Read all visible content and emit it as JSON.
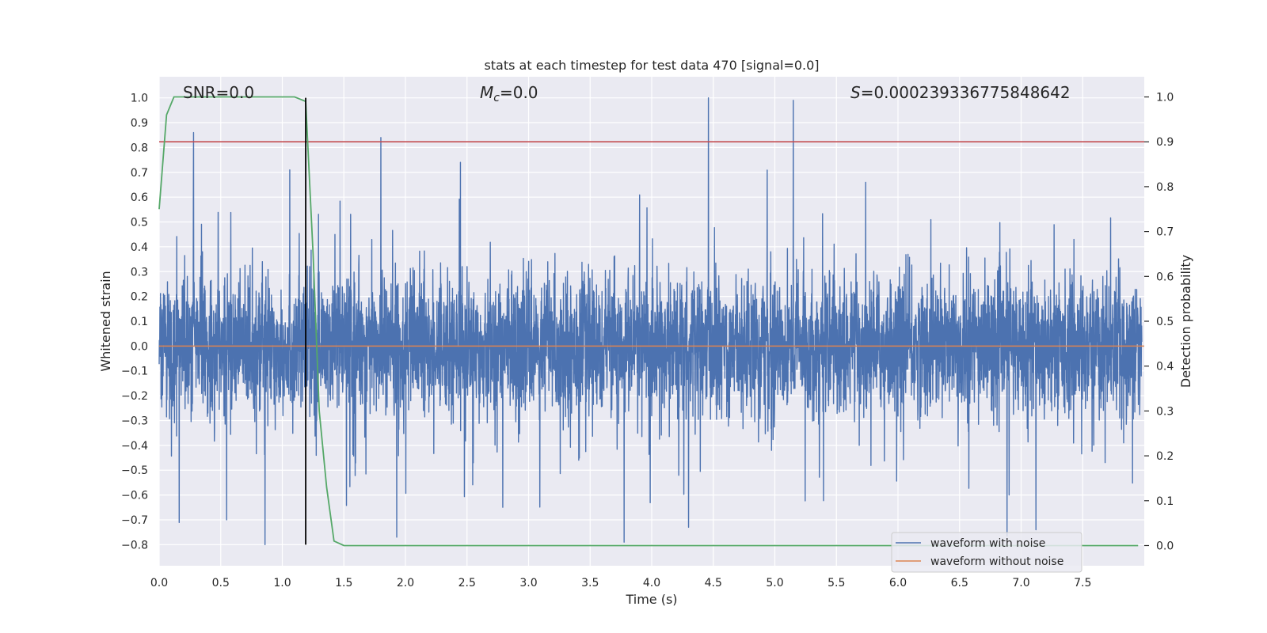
{
  "chart_data": {
    "type": "line",
    "title": "stats at each timestep for test data 470 [signal=0.0]",
    "xlabel": "Time (s)",
    "ylabel_left": "Whitened strain",
    "ylabel_right": "Detection probability",
    "xlim": [
      0.0,
      8.0
    ],
    "ylim_left": [
      -0.885,
      1.085
    ],
    "ylim_right": [
      -0.045,
      1.045
    ],
    "xticks": [
      "0.0",
      "0.5",
      "1.0",
      "1.5",
      "2.0",
      "2.5",
      "3.0",
      "3.5",
      "4.0",
      "4.5",
      "5.0",
      "5.5",
      "6.0",
      "6.5",
      "7.0",
      "7.5"
    ],
    "yticks_left": [
      "1.0",
      "0.9",
      "0.8",
      "0.7",
      "0.6",
      "0.5",
      "0.4",
      "0.3",
      "0.2",
      "0.1",
      "0.0",
      "−0.1",
      "−0.2",
      "−0.3",
      "−0.4",
      "−0.5",
      "−0.6",
      "−0.7",
      "−0.8"
    ],
    "yticks_right": [
      "1.0",
      "0.9",
      "0.8",
      "0.7",
      "0.6",
      "0.5",
      "0.4",
      "0.3",
      "0.2",
      "0.1",
      "0.0"
    ],
    "annotations": {
      "snr_label": "SNR=0.0",
      "mc_symbol": "M",
      "mc_subscript": "c",
      "mc_value": "=0.0",
      "s_symbol": "S",
      "s_value": "=0.000239336775848642"
    },
    "threshold_line": {
      "value": 0.9,
      "axis": "right",
      "color": "#c44e52"
    },
    "marker_line": {
      "x": 1.19,
      "y_range": [
        -0.8,
        1.0
      ],
      "color": "#000000"
    },
    "series": [
      {
        "name": "waveform with noise",
        "axis": "left",
        "color": "#4c72b0",
        "description": "dense whitened-noise strain sampled across 0–8 s; bulk within ±0.3",
        "approx_std": 0.13,
        "approx_range": [
          -0.8,
          1.0
        ],
        "notable_peaks": [
          {
            "x": 0.28,
            "y": 0.86
          },
          {
            "x": 1.8,
            "y": 0.84
          },
          {
            "x": 4.46,
            "y": 1.0
          },
          {
            "x": 5.15,
            "y": 0.99
          },
          {
            "x": 0.86,
            "y": -0.8
          },
          {
            "x": 1.93,
            "y": -0.77
          },
          {
            "x": 4.3,
            "y": -0.73
          },
          {
            "x": 7.12,
            "y": -0.74
          }
        ]
      },
      {
        "name": "waveform without noise",
        "axis": "left",
        "color": "#dd8452",
        "x": [
          0.0,
          8.0
        ],
        "y": [
          0.0,
          0.0
        ]
      },
      {
        "name": "detection probability",
        "axis": "right",
        "color": "#55a868",
        "x": [
          0.0,
          0.06,
          0.12,
          0.2,
          0.5,
          1.0,
          1.1,
          1.19,
          1.25,
          1.3,
          1.36,
          1.42,
          1.5,
          2.0,
          4.0,
          6.0,
          7.95
        ],
        "y": [
          0.75,
          0.96,
          1.0,
          1.0,
          1.0,
          1.0,
          1.0,
          0.99,
          0.65,
          0.3,
          0.13,
          0.01,
          0.0,
          0.0,
          0.0,
          0.0,
          0.0
        ]
      }
    ],
    "legend": {
      "position": "lower-right",
      "entries": [
        {
          "label": "waveform with noise",
          "color": "#4c72b0"
        },
        {
          "label": "waveform without noise",
          "color": "#dd8452"
        }
      ]
    },
    "background_color": "#eaeaf2",
    "grid": true
  }
}
